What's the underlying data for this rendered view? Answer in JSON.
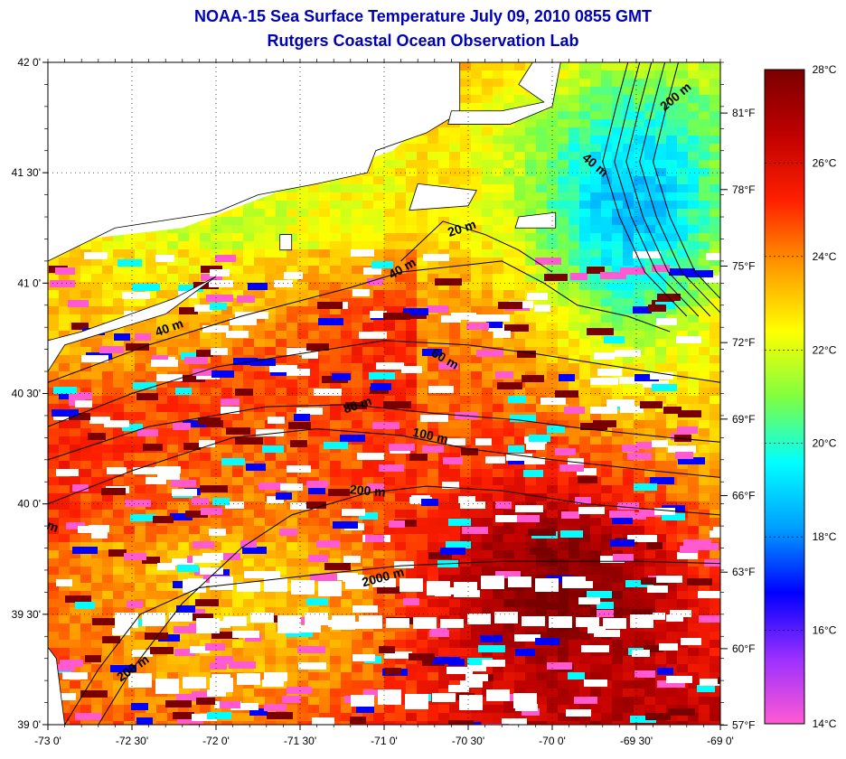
{
  "title": {
    "line1": "NOAA-15 Sea Surface Temperature July 09, 2010 0855 GMT",
    "line2": "Rutgers Coastal Ocean Observation Lab",
    "color": "#0000b4"
  },
  "map": {
    "lat_ticks": [
      "42 0'",
      "41 30'",
      "41 0'",
      "40 30'",
      "40 0'",
      "39 30'",
      "39 0'"
    ],
    "lon_ticks": [
      "-73 0'",
      "-72 30'",
      "-72 0'",
      "-71 30'",
      "-71 0'",
      "-70 30'",
      "-70 0'",
      "-69 30'",
      "-69 0'"
    ],
    "lat_range": [
      39.0,
      42.0
    ],
    "lon_range": [
      -73.0,
      -69.0
    ],
    "land_color": "#ffffff",
    "cloud_color": "#ffffff",
    "contour_labels": [
      {
        "text": "200 m",
        "lon": -69.25,
        "lat": 41.83,
        "rot": -40
      },
      {
        "text": "40 m",
        "lon": -69.76,
        "lat": 41.52,
        "rot": 40
      },
      {
        "text": "20 m",
        "lon": -70.53,
        "lat": 41.23,
        "rot": -18
      },
      {
        "text": "40 m",
        "lon": -70.88,
        "lat": 41.05,
        "rot": -30
      },
      {
        "text": "40 m",
        "lon": -72.27,
        "lat": 40.78,
        "rot": -20
      },
      {
        "text": "60 m",
        "lon": -70.65,
        "lat": 40.64,
        "rot": 30
      },
      {
        "text": "80 m",
        "lon": -71.15,
        "lat": 40.43,
        "rot": -18
      },
      {
        "text": "100 m",
        "lon": -70.73,
        "lat": 40.29,
        "rot": 12
      },
      {
        "text": "200 m",
        "lon": -71.1,
        "lat": 40.04,
        "rot": 5
      },
      {
        "text": "2000 m",
        "lon": -71.0,
        "lat": 39.65,
        "rot": -15
      },
      {
        "text": "m",
        "lon": -72.98,
        "lat": 39.88,
        "rot": 20
      },
      {
        "text": "200 m",
        "lon": -72.48,
        "lat": 39.24,
        "rot": -35
      }
    ]
  },
  "colorbar": {
    "celsius_labels": [
      "28°C",
      "26°C",
      "24°C",
      "22°C",
      "20°C",
      "18°C",
      "16°C",
      "14°C"
    ],
    "celsius_values": [
      28,
      26,
      24,
      22,
      20,
      18,
      16,
      14
    ],
    "fahrenheit_labels": [
      "81°F",
      "78°F",
      "75°F",
      "72°F",
      "69°F",
      "66°F",
      "63°F",
      "60°F",
      "57°F"
    ],
    "fahrenheit_values": [
      81,
      78,
      75,
      72,
      69,
      66,
      63,
      60,
      57
    ],
    "range_c": [
      14,
      28
    ],
    "stops": [
      "#ff5ad2",
      "#9b30ff",
      "#0000ff",
      "#00a0ff",
      "#00ffff",
      "#7fff40",
      "#ffff00",
      "#ff9900",
      "#ff2000",
      "#c00000",
      "#7a0000"
    ]
  }
}
